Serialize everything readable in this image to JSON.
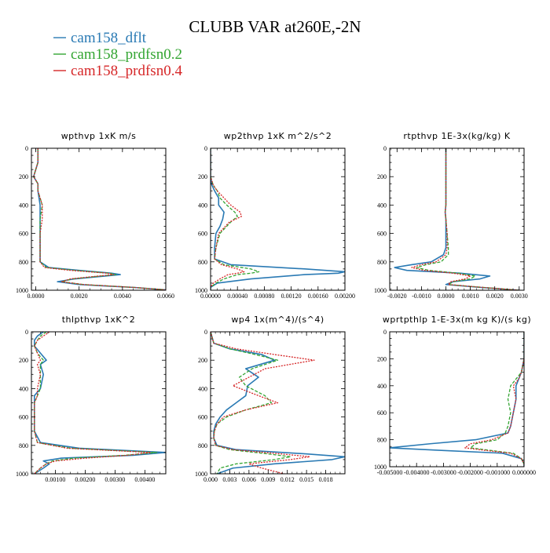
{
  "title": "CLUBB VAR at260E,-2N",
  "legend": [
    {
      "name": "cam158_dflt",
      "color": "#2a7ab4"
    },
    {
      "name": "cam158_prdfsn0.2",
      "color": "#33a532"
    },
    {
      "name": "cam158_prdfsn0.4",
      "color": "#d62728"
    }
  ],
  "chart_data": [
    {
      "type": "line",
      "title": "wpthvp  1xK m/s",
      "xlim": [
        -0.0002,
        0.006
      ],
      "ylim": [
        1000,
        0
      ],
      "y_inverted": true,
      "xticks": [
        0.0,
        0.002,
        0.004,
        0.006
      ],
      "xtick_labels": [
        "0.0000",
        "0.0020",
        "0.0040",
        "0.0060"
      ],
      "yticks": [
        0,
        200,
        400,
        600,
        800,
        1000
      ],
      "series": [
        {
          "name": "cam158_dflt",
          "y": [
            0,
            100,
            150,
            200,
            250,
            300,
            400,
            500,
            600,
            700,
            800,
            840,
            860,
            880,
            890,
            900,
            920,
            940,
            960,
            980,
            1000
          ],
          "x": [
            0.0001,
            0.0001,
            0.0,
            -0.0001,
            0.0001,
            0.0001,
            0.0002,
            0.0002,
            0.0002,
            0.0002,
            0.0002,
            0.0006,
            0.002,
            0.0035,
            0.0039,
            0.0032,
            0.0018,
            0.001,
            0.002,
            0.0045,
            0.0062
          ]
        },
        {
          "name": "cam158_prdfsn0.2",
          "y": [
            0,
            100,
            150,
            200,
            250,
            300,
            400,
            500,
            600,
            700,
            800,
            840,
            860,
            880,
            890,
            900,
            920,
            940,
            960,
            980,
            1000
          ],
          "x": [
            0.0001,
            0.0001,
            0.0,
            -0.0001,
            0.0001,
            0.0001,
            0.0003,
            0.0002,
            0.0002,
            0.0002,
            0.0002,
            0.0005,
            0.0018,
            0.0034,
            0.0037,
            0.003,
            0.0017,
            0.0012,
            0.0022,
            0.0045,
            0.0062
          ]
        },
        {
          "name": "cam158_prdfsn0.4",
          "y": [
            0,
            100,
            150,
            200,
            250,
            300,
            400,
            500,
            600,
            700,
            800,
            840,
            860,
            880,
            890,
            900,
            920,
            940,
            960,
            980,
            1000
          ],
          "x": [
            0.0001,
            0.0001,
            0.0,
            -0.0001,
            0.0001,
            0.0001,
            0.0003,
            0.0003,
            0.0002,
            0.0002,
            0.0002,
            0.0004,
            0.0016,
            0.0033,
            0.0036,
            0.0029,
            0.0016,
            0.0012,
            0.0022,
            0.0045,
            0.0062
          ]
        }
      ]
    },
    {
      "type": "line",
      "title": "wp2thvp  1xK m^2/s^2",
      "xlim": [
        0.0,
        0.002
      ],
      "ylim": [
        1000,
        0
      ],
      "y_inverted": true,
      "xticks": [
        0.0,
        0.0004,
        0.0008,
        0.0012,
        0.0016,
        0.002
      ],
      "xtick_labels": [
        "0.00000",
        "0.00040",
        "0.00080",
        "0.00120",
        "0.00160",
        "0.00200"
      ],
      "yticks": [
        0,
        200,
        400,
        600,
        800,
        1000
      ],
      "series": [
        {
          "name": "cam158_dflt",
          "y": [
            0,
            200,
            260,
            300,
            350,
            400,
            450,
            500,
            550,
            600,
            700,
            780,
            820,
            850,
            870,
            880,
            890,
            920,
            950,
            980,
            1000
          ],
          "x": [
            0.0,
            0.0,
            2e-05,
            6e-05,
            0.00012,
            0.00012,
            0.0002,
            0.00018,
            0.00014,
            8e-05,
            6e-05,
            6e-05,
            0.0003,
            0.0014,
            0.002,
            0.0019,
            0.0014,
            0.0006,
            0.0001,
            0.0,
            0.0
          ]
        },
        {
          "name": "cam158_prdfsn0.2",
          "y": [
            0,
            200,
            260,
            300,
            350,
            400,
            450,
            480,
            520,
            600,
            700,
            780,
            820,
            850,
            870,
            880,
            890,
            920,
            950,
            980,
            1000
          ],
          "x": [
            0.0,
            0.0,
            4e-05,
            0.0001,
            0.00014,
            0.00024,
            0.00036,
            0.0004,
            0.0003,
            0.00014,
            8e-05,
            6e-05,
            0.0002,
            0.0006,
            0.00072,
            0.0006,
            0.0004,
            0.0002,
            8e-05,
            0.0,
            0.0
          ]
        },
        {
          "name": "cam158_prdfsn0.4",
          "y": [
            0,
            200,
            260,
            300,
            350,
            400,
            450,
            480,
            520,
            600,
            700,
            780,
            820,
            850,
            870,
            880,
            890,
            920,
            950,
            980,
            1000
          ],
          "x": [
            0.0,
            0.0,
            4e-05,
            0.0001,
            0.0002,
            0.0003,
            0.00044,
            0.00046,
            0.00028,
            0.00012,
            8e-05,
            6e-05,
            0.00016,
            0.0004,
            0.0005,
            0.0004,
            0.00026,
            0.00014,
            4e-05,
            0.0,
            0.0
          ]
        }
      ]
    },
    {
      "type": "line",
      "title": "rtpthvp  1E-3x(kg/kg) K",
      "xlim": [
        -0.0023,
        0.0032
      ],
      "ylim": [
        1000,
        0
      ],
      "y_inverted": true,
      "xticks": [
        -0.002,
        -0.001,
        0.0,
        0.001,
        0.002,
        0.003
      ],
      "xtick_labels": [
        "-0.0020",
        "-0.0010",
        "0.0000",
        "0.0010",
        "0.0020",
        "0.0030"
      ],
      "yticks": [
        0,
        200,
        400,
        600,
        800,
        1000
      ],
      "series": [
        {
          "name": "cam158_dflt",
          "y": [
            0,
            200,
            400,
            450,
            500,
            600,
            700,
            750,
            800,
            820,
            840,
            860,
            880,
            900,
            920,
            940,
            960,
            980,
            1000
          ],
          "x": [
            0.0,
            0.0,
            0.0,
            -3e-05,
            0.0,
            0.0,
            0.0,
            -0.0001,
            -0.0006,
            -0.0014,
            -0.0021,
            -0.0016,
            0.0006,
            0.0018,
            0.0014,
            0.0003,
            0.0,
            0.0014,
            0.003
          ]
        },
        {
          "name": "cam158_prdfsn0.2",
          "y": [
            0,
            200,
            400,
            450,
            500,
            600,
            700,
            750,
            800,
            820,
            840,
            860,
            880,
            900,
            920,
            940,
            960,
            980,
            1000
          ],
          "x": [
            0.0,
            0.0,
            0.0,
            -3e-05,
            0.0,
            5e-05,
            0.0001,
            0.0001,
            -0.0002,
            -0.0008,
            -0.0012,
            -0.0007,
            0.0005,
            0.0012,
            0.001,
            0.0003,
            0.0001,
            0.0015,
            0.003
          ]
        },
        {
          "name": "cam158_prdfsn0.4",
          "y": [
            0,
            200,
            400,
            450,
            500,
            600,
            700,
            750,
            800,
            820,
            840,
            860,
            880,
            900,
            920,
            940,
            960,
            980,
            1000
          ],
          "x": [
            0.0,
            0.0,
            0.0,
            -3e-05,
            0.0,
            5e-05,
            5e-05,
            0.0,
            -0.0004,
            -0.001,
            -0.0014,
            -0.0009,
            0.0003,
            0.001,
            0.0008,
            0.0002,
            0.0001,
            0.0015,
            0.003
          ]
        }
      ]
    },
    {
      "type": "line",
      "title": "thlpthvp  1xK^2",
      "xlim": [
        0.0002,
        0.0047
      ],
      "ylim": [
        1000,
        0
      ],
      "y_inverted": true,
      "xticks": [
        0.001,
        0.002,
        0.003,
        0.004
      ],
      "xtick_labels": [
        "0.00100",
        "0.00200",
        "0.00300",
        "0.00400"
      ],
      "yticks": [
        0,
        200,
        400,
        600,
        800,
        1000
      ],
      "series": [
        {
          "name": "cam158_dflt",
          "y": [
            0,
            30,
            60,
            100,
            150,
            200,
            230,
            300,
            400,
            450,
            500,
            600,
            700,
            780,
            820,
            850,
            870,
            890,
            910,
            930,
            960,
            1000
          ],
          "x": [
            0.0006,
            0.0004,
            0.0003,
            0.0003,
            0.0005,
            0.0007,
            0.0005,
            0.0006,
            0.0005,
            0.0003,
            0.0003,
            0.0003,
            0.0003,
            0.0005,
            0.0018,
            0.0047,
            0.0036,
            0.0012,
            0.0006,
            0.0008,
            0.0006,
            0.0003
          ]
        },
        {
          "name": "cam158_prdfsn0.2",
          "y": [
            0,
            30,
            60,
            100,
            150,
            200,
            230,
            300,
            400,
            450,
            500,
            600,
            700,
            780,
            820,
            850,
            870,
            890,
            910,
            930,
            960,
            1000
          ],
          "x": [
            0.0007,
            0.0005,
            0.0004,
            0.0003,
            0.0004,
            0.0006,
            0.0005,
            0.0005,
            0.0005,
            0.0004,
            0.0003,
            0.0003,
            0.0003,
            0.0004,
            0.0015,
            0.0044,
            0.0033,
            0.0016,
            0.0009,
            0.0007,
            0.0005,
            0.0003
          ]
        },
        {
          "name": "cam158_prdfsn0.4",
          "y": [
            0,
            30,
            60,
            100,
            150,
            200,
            230,
            300,
            400,
            450,
            500,
            600,
            700,
            780,
            820,
            850,
            870,
            890,
            910,
            930,
            960,
            1000
          ],
          "x": [
            0.0008,
            0.0006,
            0.0004,
            0.0003,
            0.0004,
            0.0005,
            0.0004,
            0.0005,
            0.0004,
            0.0004,
            0.0003,
            0.0003,
            0.0003,
            0.0004,
            0.0014,
            0.0042,
            0.0034,
            0.002,
            0.001,
            0.0007,
            0.0005,
            0.0003
          ]
        }
      ]
    },
    {
      "type": "line",
      "title": "wp4  1x(m^4)/(s^4)",
      "xlim": [
        0.0,
        0.021
      ],
      "ylim": [
        1000,
        0
      ],
      "y_inverted": true,
      "xticks": [
        0.0,
        0.003,
        0.006,
        0.009,
        0.012,
        0.015,
        0.018
      ],
      "xtick_labels": [
        "0.000",
        "0.003",
        "0.006",
        "0.009",
        "0.012",
        "0.015",
        "0.018"
      ],
      "yticks": [
        0,
        200,
        400,
        600,
        800,
        1000
      ],
      "series": [
        {
          "name": "cam158_dflt",
          "y": [
            0,
            80,
            120,
            160,
            200,
            260,
            320,
            380,
            450,
            500,
            550,
            600,
            650,
            700,
            750,
            800,
            830,
            860,
            880,
            900,
            930,
            960,
            1000
          ],
          "x": [
            0.0,
            0.0005,
            0.003,
            0.008,
            0.01,
            0.0055,
            0.0075,
            0.0058,
            0.0055,
            0.004,
            0.0025,
            0.0015,
            0.0008,
            0.0005,
            0.0005,
            0.001,
            0.004,
            0.015,
            0.021,
            0.019,
            0.01,
            0.0035,
            0.001
          ]
        },
        {
          "name": "cam158_prdfsn0.2",
          "y": [
            0,
            80,
            120,
            160,
            200,
            260,
            320,
            380,
            450,
            500,
            550,
            600,
            650,
            700,
            750,
            800,
            830,
            860,
            880,
            900,
            930,
            960,
            1000
          ],
          "x": [
            0.0,
            0.0005,
            0.003,
            0.007,
            0.0105,
            0.0065,
            0.0045,
            0.0055,
            0.0085,
            0.0095,
            0.0055,
            0.0025,
            0.001,
            0.0006,
            0.0005,
            0.0008,
            0.003,
            0.009,
            0.0125,
            0.01,
            0.004,
            0.0015,
            0.001
          ]
        },
        {
          "name": "cam158_prdfsn0.4",
          "y": [
            0,
            80,
            120,
            160,
            200,
            260,
            320,
            380,
            450,
            500,
            550,
            600,
            650,
            700,
            750,
            800,
            830,
            860,
            880,
            900,
            930,
            960,
            1000
          ],
          "x": [
            0.0,
            0.0005,
            0.004,
            0.01,
            0.0162,
            0.0085,
            0.006,
            0.0035,
            0.0075,
            0.0105,
            0.0055,
            0.002,
            0.001,
            0.0006,
            0.0005,
            0.0008,
            0.0035,
            0.011,
            0.0155,
            0.0125,
            0.006,
            0.008,
            0.0115
          ]
        }
      ]
    },
    {
      "type": "line",
      "title": "wprtpthlp  1-E-3x(m kg K)/(s kg)",
      "xlim": [
        -0.005,
        0.0
      ],
      "ylim": [
        1000,
        0
      ],
      "y_inverted": true,
      "xticks": [
        -0.005,
        -0.004,
        -0.003,
        -0.002,
        -0.001,
        0.0
      ],
      "xtick_labels": [
        "-0.005000",
        "-0.004000",
        "-0.003000",
        "-0.002000",
        "-0.001000",
        "0.000000"
      ],
      "yticks": [
        0,
        200,
        400,
        600,
        800,
        1000
      ],
      "series": [
        {
          "name": "cam158_dflt",
          "y": [
            0,
            100,
            200,
            300,
            350,
            400,
            500,
            600,
            700,
            750,
            800,
            830,
            860,
            880,
            900,
            940,
            980,
            1000
          ],
          "x": [
            0.0,
            0.0,
            0.0,
            -0.0001,
            -0.0002,
            -0.0003,
            -0.0003,
            -0.0004,
            -0.0005,
            -0.0006,
            -0.0018,
            -0.0035,
            -0.005,
            -0.003,
            -0.0008,
            -0.0001,
            0.0,
            0.0
          ]
        },
        {
          "name": "cam158_prdfsn0.2",
          "y": [
            0,
            100,
            200,
            300,
            350,
            400,
            500,
            600,
            700,
            750,
            800,
            830,
            860,
            880,
            900,
            940,
            980,
            1000
          ],
          "x": [
            0.0,
            0.0,
            0.0,
            -0.0001,
            -0.0003,
            -0.0005,
            -0.0006,
            -0.0005,
            -0.0006,
            -0.0007,
            -0.001,
            -0.0018,
            -0.002,
            -0.0012,
            -0.0004,
            -0.0001,
            0.0,
            0.0
          ]
        },
        {
          "name": "cam158_prdfsn0.4",
          "y": [
            0,
            100,
            200,
            300,
            350,
            400,
            500,
            600,
            700,
            750,
            800,
            830,
            860,
            880,
            900,
            940,
            980,
            1000
          ],
          "x": [
            0.0,
            0.0,
            0.0,
            -0.0001,
            -0.0002,
            -0.0004,
            -0.0003,
            -0.0004,
            -0.0005,
            -0.0006,
            -0.0012,
            -0.002,
            -0.0022,
            -0.0014,
            -0.0005,
            -0.0001,
            0.0,
            0.0
          ]
        }
      ]
    }
  ]
}
